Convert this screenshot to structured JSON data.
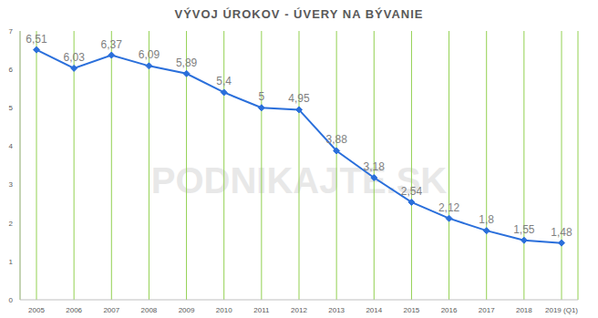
{
  "chart_data": {
    "type": "line",
    "title": "VÝVOJ ÚROKOV - ÚVERY NA BÝVANIE",
    "annotations": [
      "PODNIKAJTE.SK"
    ],
    "categories": [
      "2005",
      "2006",
      "2007",
      "2008",
      "2009",
      "2010",
      "2011",
      "2012",
      "2013",
      "2014",
      "2015",
      "2016",
      "2017",
      "2018",
      "2019 (Q1)"
    ],
    "values": [
      6.51,
      6.03,
      6.37,
      6.09,
      5.89,
      5.4,
      5,
      4.95,
      3.88,
      3.18,
      2.54,
      2.12,
      1.8,
      1.55,
      1.48
    ],
    "value_labels": [
      "6,51",
      "6,03",
      "6,37",
      "6,09",
      "5,89",
      "5,4",
      "5",
      "4,95",
      "3,88",
      "3,18",
      "2,54",
      "2,12",
      "1,8",
      "1,55",
      "1,48"
    ],
    "color": "#2a6fdb",
    "marker": "diamond",
    "line_style": "solid",
    "ylim": [
      0,
      7
    ],
    "yticks": [
      0,
      1,
      2,
      3,
      4,
      5,
      6,
      7
    ],
    "grid": true,
    "data_labels": true
  }
}
